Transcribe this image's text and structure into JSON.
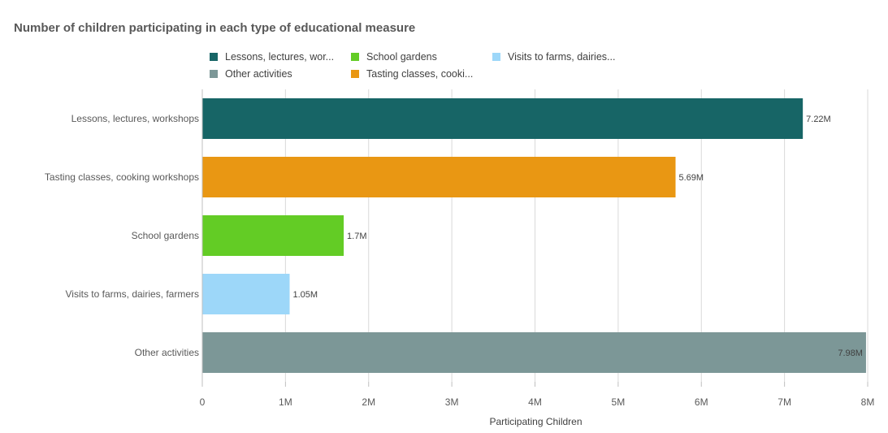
{
  "chart_data": {
    "type": "bar",
    "orientation": "horizontal",
    "title": "Number of children participating in each type of educational measure",
    "xlabel": "Participating Children",
    "ylabel": "",
    "xlim": [
      0,
      8000000
    ],
    "ticks": [
      0,
      1000000,
      2000000,
      3000000,
      4000000,
      5000000,
      6000000,
      7000000,
      8000000
    ],
    "tick_labels": [
      "0",
      "1M",
      "2M",
      "3M",
      "4M",
      "5M",
      "6M",
      "7M",
      "8M"
    ],
    "grid": true,
    "legend_position": "top",
    "categories": [
      "Lessons, lectures, workshops",
      "Tasting classes, cooking workshops",
      "School gardens",
      "Visits to farms, dairies, farmers",
      "Other activities"
    ],
    "values": [
      7220000,
      5690000,
      1700000,
      1050000,
      7980000
    ],
    "value_labels": [
      "7.22M",
      "5.69M",
      "1.7M",
      "1.05M",
      "7.98M"
    ],
    "colors": [
      "#176566",
      "#e99713",
      "#63cc25",
      "#9dd7f9",
      "#7c9797"
    ],
    "legend": [
      {
        "label": "Lessons, lectures, wor...",
        "color": "#176566"
      },
      {
        "label": "School gardens",
        "color": "#63cc25"
      },
      {
        "label": "Visits to farms, dairies...",
        "color": "#9dd7f9"
      },
      {
        "label": "Other activities",
        "color": "#7c9797"
      },
      {
        "label": "Tasting classes, cooki...",
        "color": "#e99713"
      }
    ]
  }
}
